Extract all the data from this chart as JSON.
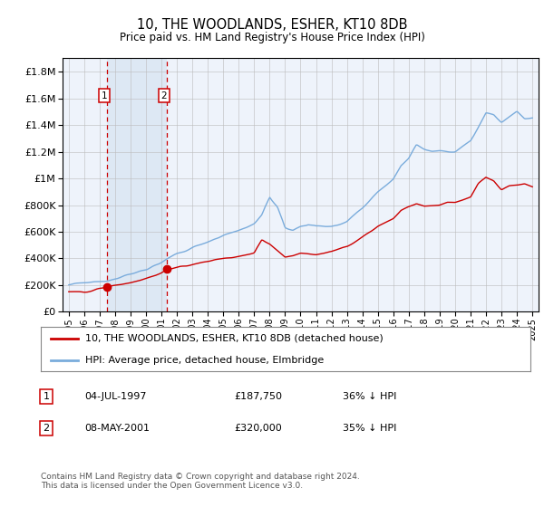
{
  "title": "10, THE WOODLANDS, ESHER, KT10 8DB",
  "subtitle": "Price paid vs. HM Land Registry's House Price Index (HPI)",
  "legend_line1": "10, THE WOODLANDS, ESHER, KT10 8DB (detached house)",
  "legend_line2": "HPI: Average price, detached house, Elmbridge",
  "red_line_color": "#cc0000",
  "blue_line_color": "#7aacdc",
  "shaded_color": "#dde8f4",
  "grid_color": "#bbbbbb",
  "ylabel_numeric": [
    0,
    200000,
    400000,
    600000,
    800000,
    1000000,
    1200000,
    1400000,
    1600000,
    1800000
  ],
  "ylabel_labels": [
    "£0",
    "£200K",
    "£400K",
    "£600K",
    "£800K",
    "£1M",
    "£1.2M",
    "£1.4M",
    "£1.6M",
    "£1.8M"
  ],
  "xlim_start": 1994.6,
  "xlim_end": 2025.4,
  "ylim_min": 0,
  "ylim_max": 1900000,
  "transaction1_year": 1997.5,
  "transaction1_price": 187750,
  "transaction2_year": 2001.35,
  "transaction2_price": 320000,
  "footer": "Contains HM Land Registry data © Crown copyright and database right 2024.\nThis data is licensed under the Open Government Licence v3.0.",
  "background_color": "#eef3fb"
}
